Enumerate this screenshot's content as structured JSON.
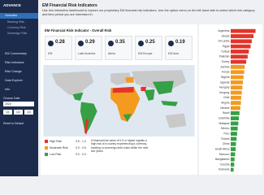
{
  "sidebar": {
    "logo": "ADVANCE",
    "menu": [
      "Overview",
      "Banking Risk",
      "Currency Risk",
      "Sovereign Risk",
      "EM Commentary",
      "Risk Indicators",
      "Risk Change",
      "Data Explorer",
      "Info"
    ],
    "date_label": "Choose Date",
    "year": "2023",
    "quarters": [
      "Q1",
      "Q2",
      "Q3"
    ],
    "reset": "Reset to Default"
  },
  "header": {
    "title": "EM Financial Risk Indicators",
    "description": "Use this interactive dashboard to explore our proprietary EM financial risk indicators. Use the option menu on the left-hand side to select which risk category and time period you are interested in."
  },
  "panel_title": "EM Financial Risk Indicator - Overall Risk",
  "kpis": [
    {
      "value": 0.28,
      "label": "EM"
    },
    {
      "value": 0.29,
      "label": "Latin America"
    },
    {
      "value": 0.35,
      "label": "Africa"
    },
    {
      "value": 0.25,
      "label": "EM Europe"
    },
    {
      "value": 0.19,
      "label": "EM Asia"
    }
  ],
  "legend": [
    {
      "label": "High Risk",
      "range": "0.5 - 1.0",
      "color": "#e3342a"
    },
    {
      "label": "Moderate Risk",
      "range": "0.3 - 0.5",
      "color": "#f39a1f"
    },
    {
      "label": "Low Risk",
      "range": "0.0 - 0.3",
      "color": "#35a046"
    }
  ],
  "note": "A financial risk value of 0.5 or higher signals a high risk of a country experiencing a currency, banking or sovereign debt crisis within the next two years.",
  "chart_data": {
    "type": "bar",
    "orientation": "horizontal",
    "categories": [
      "Argentina",
      "Ghana",
      "Sri Lanka",
      "Egypt",
      "Tunisia",
      "Pakistan",
      "Turkey",
      "Zambia",
      "Kenya",
      "Nigeria",
      "Uganda",
      "Hungary",
      "Uruguay",
      "Chile",
      "Angola",
      "Ukraine",
      "Brazil",
      "Colombia",
      "Malaysia",
      "Mexico",
      "Peru",
      "Poland",
      "China",
      "South Africa",
      "Morocco",
      "Bangladesh",
      "Czechia",
      "Romania"
    ],
    "values": [
      0.85,
      0.78,
      0.72,
      0.68,
      0.62,
      0.58,
      0.53,
      0.48,
      0.46,
      0.44,
      0.42,
      0.4,
      0.38,
      0.36,
      0.35,
      0.33,
      0.3,
      0.28,
      0.26,
      0.24,
      0.22,
      0.2,
      0.18,
      0.17,
      0.15,
      0.13,
      0.12,
      0.1
    ],
    "colors": [
      "#e3342a",
      "#e3342a",
      "#e3342a",
      "#e3342a",
      "#e3342a",
      "#e3342a",
      "#e3342a",
      "#f39a1f",
      "#f39a1f",
      "#f39a1f",
      "#f39a1f",
      "#f39a1f",
      "#f39a1f",
      "#f39a1f",
      "#f39a1f",
      "#f39a1f",
      "#35a046",
      "#35a046",
      "#35a046",
      "#35a046",
      "#35a046",
      "#35a046",
      "#35a046",
      "#35a046",
      "#35a046",
      "#35a046",
      "#35a046",
      "#35a046"
    ],
    "xlim": [
      0,
      1
    ]
  }
}
